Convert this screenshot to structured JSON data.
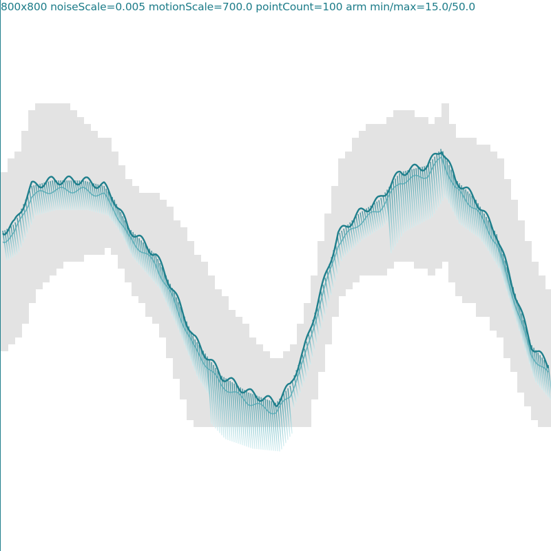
{
  "caption": "800x800 noiseScale=0.005 motionScale=700.0 pointCount=100 arm min/max=15.0/50.0",
  "colors": {
    "background": "#ffffff",
    "shadow": "#e3e3e3",
    "stroke_dark": "#1f7f8c",
    "stroke_mid": "#4fa7b3",
    "stroke_light": "#bfe6ea",
    "caption": "#1b7b88"
  }
}
